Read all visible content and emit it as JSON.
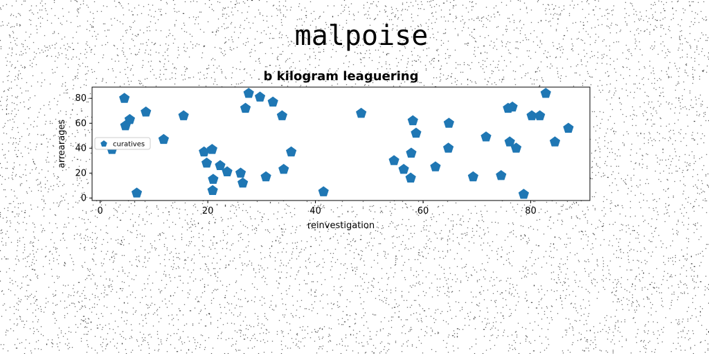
{
  "suptitle": "malpoise",
  "chart_data": {
    "type": "scatter",
    "title": "b kilogram leaguering",
    "xlabel": "reinvestigation",
    "ylabel": "arrearages",
    "xlim": [
      -1.5,
      91
    ],
    "ylim": [
      -2,
      89
    ],
    "xticks": [
      0,
      20,
      40,
      60,
      80
    ],
    "yticks": [
      0,
      20,
      40,
      60,
      80
    ],
    "grid": false,
    "legend": "center-left",
    "series": [
      {
        "name": "curatives",
        "color": "#1f77b4",
        "marker": "pentagon",
        "x": [
          2.2,
          4.5,
          4.7,
          5.5,
          6.8,
          8.5,
          11.8,
          15.5,
          19.3,
          19.8,
          20.8,
          20.9,
          21.0,
          22.3,
          23.6,
          26.1,
          26.5,
          27.0,
          27.6,
          29.7,
          30.8,
          32.1,
          33.8,
          34.1,
          35.5,
          41.5,
          48.5,
          54.6,
          56.4,
          57.7,
          57.8,
          58.1,
          58.7,
          62.3,
          64.7,
          64.8,
          69.3,
          71.7,
          74.5,
          75.8,
          76.1,
          76.6,
          77.3,
          78.7,
          80.2,
          81.7,
          82.8,
          84.5,
          87.0
        ],
        "y": [
          39,
          80,
          58,
          63,
          4,
          69,
          47,
          66,
          37,
          28,
          39,
          6,
          15,
          26,
          21,
          20,
          12,
          72,
          84,
          81,
          17,
          77,
          66,
          23,
          37,
          5,
          68,
          30,
          23,
          16,
          36,
          62,
          52,
          25,
          40,
          60,
          17,
          49,
          18,
          72,
          45,
          73,
          40,
          3,
          66,
          66,
          84,
          45,
          56
        ]
      }
    ]
  }
}
